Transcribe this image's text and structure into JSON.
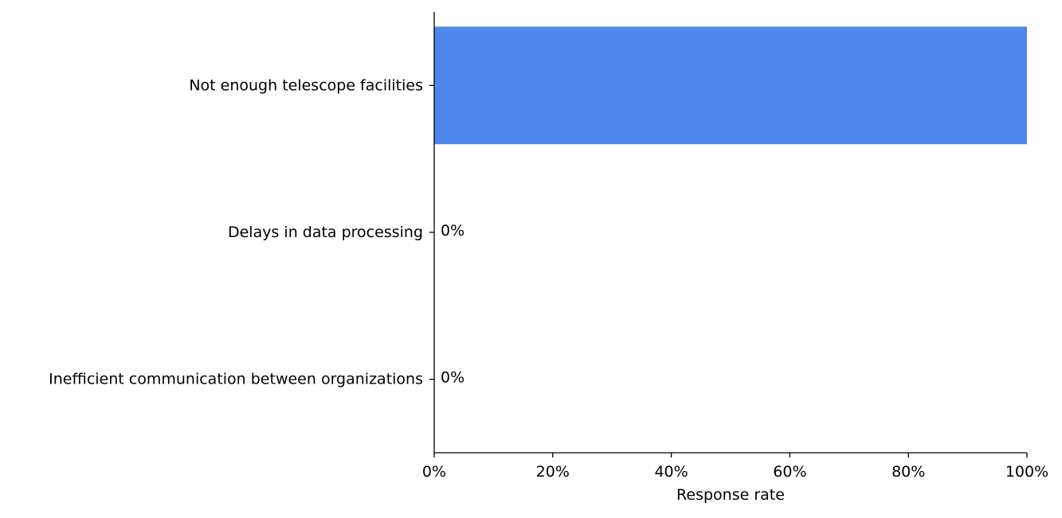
{
  "chart_data": {
    "type": "bar",
    "orientation": "horizontal",
    "categories": [
      "Not enough telescope facilities",
      "Delays in data processing",
      "Inefficient communication between organizations"
    ],
    "values": [
      100,
      0,
      0
    ],
    "value_labels": [
      "",
      "0%",
      "0%"
    ],
    "xlabel": "Response rate",
    "ylabel": "",
    "title": "",
    "xlim": [
      0,
      100
    ],
    "x_ticks": [
      {
        "value": 0,
        "label": "0%"
      },
      {
        "value": 20,
        "label": "20%"
      },
      {
        "value": 40,
        "label": "40%"
      },
      {
        "value": 60,
        "label": "60%"
      },
      {
        "value": 80,
        "label": "80%"
      },
      {
        "value": 100,
        "label": "100%"
      }
    ],
    "bar_color": "#4f87ec",
    "grid": false,
    "legend": "none"
  }
}
